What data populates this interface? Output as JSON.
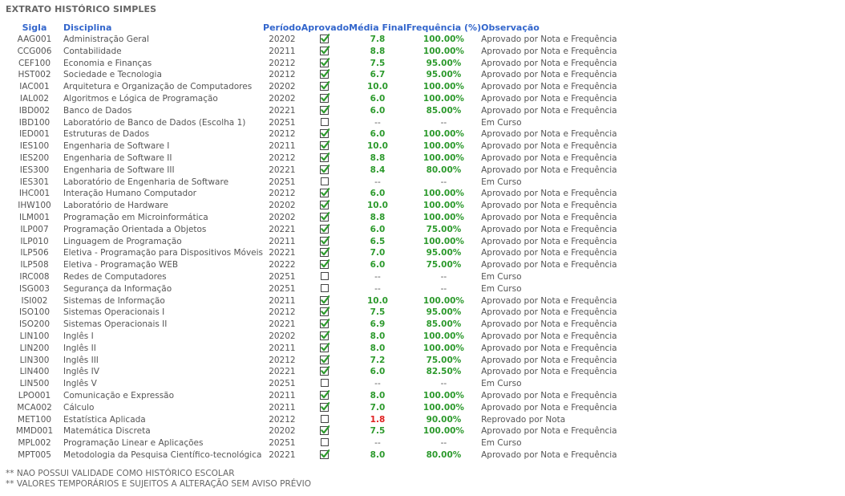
{
  "page": {
    "title": "EXTRATO HISTÓRICO SIMPLES"
  },
  "table": {
    "headers": {
      "sigla": "Sigla",
      "disciplina": "Disciplina",
      "periodo": "Período",
      "aprovado": "Aprovado",
      "media": "Média Final",
      "frequencia": "Frequência (%)",
      "observacao": "Observação"
    },
    "rows": [
      {
        "sigla": "AAG001",
        "disciplina": "Administração Geral",
        "periodo": "20202",
        "aprovado": true,
        "media": "7.8",
        "frequencia": "100.00%",
        "observacao": "Aprovado por Nota e Frequência"
      },
      {
        "sigla": "CCG006",
        "disciplina": "Contabilidade",
        "periodo": "20211",
        "aprovado": true,
        "media": "8.8",
        "frequencia": "100.00%",
        "observacao": "Aprovado por Nota e Frequência"
      },
      {
        "sigla": "CEF100",
        "disciplina": "Economia e Finanças",
        "periodo": "20212",
        "aprovado": true,
        "media": "7.5",
        "frequencia": "95.00%",
        "observacao": "Aprovado por Nota e Frequência"
      },
      {
        "sigla": "HST002",
        "disciplina": "Sociedade e Tecnologia",
        "periodo": "20212",
        "aprovado": true,
        "media": "6.7",
        "frequencia": "95.00%",
        "observacao": "Aprovado por Nota e Frequência"
      },
      {
        "sigla": "IAC001",
        "disciplina": "Arquitetura e Organização de Computadores",
        "periodo": "20202",
        "aprovado": true,
        "media": "10.0",
        "frequencia": "100.00%",
        "observacao": "Aprovado por Nota e Frequência"
      },
      {
        "sigla": "IAL002",
        "disciplina": "Algoritmos e Lógica de Programação",
        "periodo": "20202",
        "aprovado": true,
        "media": "6.0",
        "frequencia": "100.00%",
        "observacao": "Aprovado por Nota e Frequência"
      },
      {
        "sigla": "IBD002",
        "disciplina": "Banco de Dados",
        "periodo": "20221",
        "aprovado": true,
        "media": "6.0",
        "frequencia": "85.00%",
        "observacao": "Aprovado por Nota e Frequência"
      },
      {
        "sigla": "IBD100",
        "disciplina": "Laboratório de Banco de Dados (Escolha 1)",
        "periodo": "20251",
        "aprovado": false,
        "media": "--",
        "frequencia": "--",
        "observacao": "Em Curso"
      },
      {
        "sigla": "IED001",
        "disciplina": "Estruturas de Dados",
        "periodo": "20212",
        "aprovado": true,
        "media": "6.0",
        "frequencia": "100.00%",
        "observacao": "Aprovado por Nota e Frequência"
      },
      {
        "sigla": "IES100",
        "disciplina": "Engenharia de Software I",
        "periodo": "20211",
        "aprovado": true,
        "media": "10.0",
        "frequencia": "100.00%",
        "observacao": "Aprovado por Nota e Frequência"
      },
      {
        "sigla": "IES200",
        "disciplina": "Engenharia de Software II",
        "periodo": "20212",
        "aprovado": true,
        "media": "8.8",
        "frequencia": "100.00%",
        "observacao": "Aprovado por Nota e Frequência"
      },
      {
        "sigla": "IES300",
        "disciplina": "Engenharia de Software III",
        "periodo": "20221",
        "aprovado": true,
        "media": "8.4",
        "frequencia": "80.00%",
        "observacao": "Aprovado por Nota e Frequência"
      },
      {
        "sigla": "IES301",
        "disciplina": "Laboratório de Engenharia de Software",
        "periodo": "20251",
        "aprovado": false,
        "media": "--",
        "frequencia": "--",
        "observacao": "Em Curso"
      },
      {
        "sigla": "IHC001",
        "disciplina": "Interação Humano Computador",
        "periodo": "20212",
        "aprovado": true,
        "media": "6.0",
        "frequencia": "100.00%",
        "observacao": "Aprovado por Nota e Frequência"
      },
      {
        "sigla": "IHW100",
        "disciplina": "Laboratório de Hardware",
        "periodo": "20202",
        "aprovado": true,
        "media": "10.0",
        "frequencia": "100.00%",
        "observacao": "Aprovado por Nota e Frequência"
      },
      {
        "sigla": "ILM001",
        "disciplina": "Programação em Microinformática",
        "periodo": "20202",
        "aprovado": true,
        "media": "8.8",
        "frequencia": "100.00%",
        "observacao": "Aprovado por Nota e Frequência"
      },
      {
        "sigla": "ILP007",
        "disciplina": "Programação Orientada a Objetos",
        "periodo": "20221",
        "aprovado": true,
        "media": "6.0",
        "frequencia": "75.00%",
        "observacao": "Aprovado por Nota e Frequência"
      },
      {
        "sigla": "ILP010",
        "disciplina": "Linguagem de Programação",
        "periodo": "20211",
        "aprovado": true,
        "media": "6.5",
        "frequencia": "100.00%",
        "observacao": "Aprovado por Nota e Frequência"
      },
      {
        "sigla": "ILP506",
        "disciplina": "Eletiva - Programação para Dispositivos Móveis",
        "periodo": "20221",
        "aprovado": true,
        "media": "7.0",
        "frequencia": "95.00%",
        "observacao": "Aprovado por Nota e Frequência"
      },
      {
        "sigla": "ILP508",
        "disciplina": "Eletiva - Programação WEB",
        "periodo": "20222",
        "aprovado": true,
        "media": "6.0",
        "frequencia": "75.00%",
        "observacao": "Aprovado por Nota e Frequência"
      },
      {
        "sigla": "IRC008",
        "disciplina": "Redes de Computadores",
        "periodo": "20251",
        "aprovado": false,
        "media": "--",
        "frequencia": "--",
        "observacao": "Em Curso"
      },
      {
        "sigla": "ISG003",
        "disciplina": "Segurança da Informação",
        "periodo": "20251",
        "aprovado": false,
        "media": "--",
        "frequencia": "--",
        "observacao": "Em Curso"
      },
      {
        "sigla": "ISI002",
        "disciplina": "Sistemas de Informação",
        "periodo": "20211",
        "aprovado": true,
        "media": "10.0",
        "frequencia": "100.00%",
        "observacao": "Aprovado por Nota e Frequência"
      },
      {
        "sigla": "ISO100",
        "disciplina": "Sistemas Operacionais I",
        "periodo": "20212",
        "aprovado": true,
        "media": "7.5",
        "frequencia": "95.00%",
        "observacao": "Aprovado por Nota e Frequência"
      },
      {
        "sigla": "ISO200",
        "disciplina": "Sistemas Operacionais II",
        "periodo": "20221",
        "aprovado": true,
        "media": "6.9",
        "frequencia": "85.00%",
        "observacao": "Aprovado por Nota e Frequência"
      },
      {
        "sigla": "LIN100",
        "disciplina": "Inglês I",
        "periodo": "20202",
        "aprovado": true,
        "media": "8.0",
        "frequencia": "100.00%",
        "observacao": "Aprovado por Nota e Frequência"
      },
      {
        "sigla": "LIN200",
        "disciplina": "Inglês II",
        "periodo": "20211",
        "aprovado": true,
        "media": "8.0",
        "frequencia": "100.00%",
        "observacao": "Aprovado por Nota e Frequência"
      },
      {
        "sigla": "LIN300",
        "disciplina": "Inglês III",
        "periodo": "20212",
        "aprovado": true,
        "media": "7.2",
        "frequencia": "75.00%",
        "observacao": "Aprovado por Nota e Frequência"
      },
      {
        "sigla": "LIN400",
        "disciplina": "Inglês IV",
        "periodo": "20221",
        "aprovado": true,
        "media": "6.0",
        "frequencia": "82.50%",
        "observacao": "Aprovado por Nota e Frequência"
      },
      {
        "sigla": "LIN500",
        "disciplina": "Inglês V",
        "periodo": "20251",
        "aprovado": false,
        "media": "--",
        "frequencia": "--",
        "observacao": "Em Curso"
      },
      {
        "sigla": "LPO001",
        "disciplina": "Comunicação e Expressão",
        "periodo": "20211",
        "aprovado": true,
        "media": "8.0",
        "frequencia": "100.00%",
        "observacao": "Aprovado por Nota e Frequência"
      },
      {
        "sigla": "MCA002",
        "disciplina": "Cálculo",
        "periodo": "20211",
        "aprovado": true,
        "media": "7.0",
        "frequencia": "100.00%",
        "observacao": "Aprovado por Nota e Frequência"
      },
      {
        "sigla": "MET100",
        "disciplina": "Estatística Aplicada",
        "periodo": "20212",
        "aprovado": false,
        "media": "1.8",
        "frequencia": "90.00%",
        "observacao": "Reprovado por Nota",
        "failed": true
      },
      {
        "sigla": "MMD001",
        "disciplina": "Matemática Discreta",
        "periodo": "20202",
        "aprovado": true,
        "media": "7.5",
        "frequencia": "100.00%",
        "observacao": "Aprovado por Nota e Frequência"
      },
      {
        "sigla": "MPL002",
        "disciplina": "Programação Linear e Aplicações",
        "periodo": "20251",
        "aprovado": false,
        "media": "--",
        "frequencia": "--",
        "observacao": "Em Curso"
      },
      {
        "sigla": "MPT005",
        "disciplina": "Metodologia da Pesquisa Científico-tecnológica",
        "periodo": "20221",
        "aprovado": true,
        "media": "8.0",
        "frequencia": "80.00%",
        "observacao": "Aprovado por Nota e Frequência"
      }
    ]
  },
  "notes": [
    "** NAO POSSUI VALIDADE COMO HISTÓRICO ESCOLAR",
    "** VALORES TEMPORÁRIOS E SUJEITOS A ALTERAÇÃO SEM AVISO PRÉVIO"
  ],
  "colors": {
    "header_blue": "#3366cc",
    "pass_green": "#2d9a2d",
    "fail_red": "#e02020",
    "text_gray": "#555555"
  },
  "icons": {
    "approved": "checked-checkbox-icon",
    "not_approved": "empty-checkbox-icon"
  }
}
